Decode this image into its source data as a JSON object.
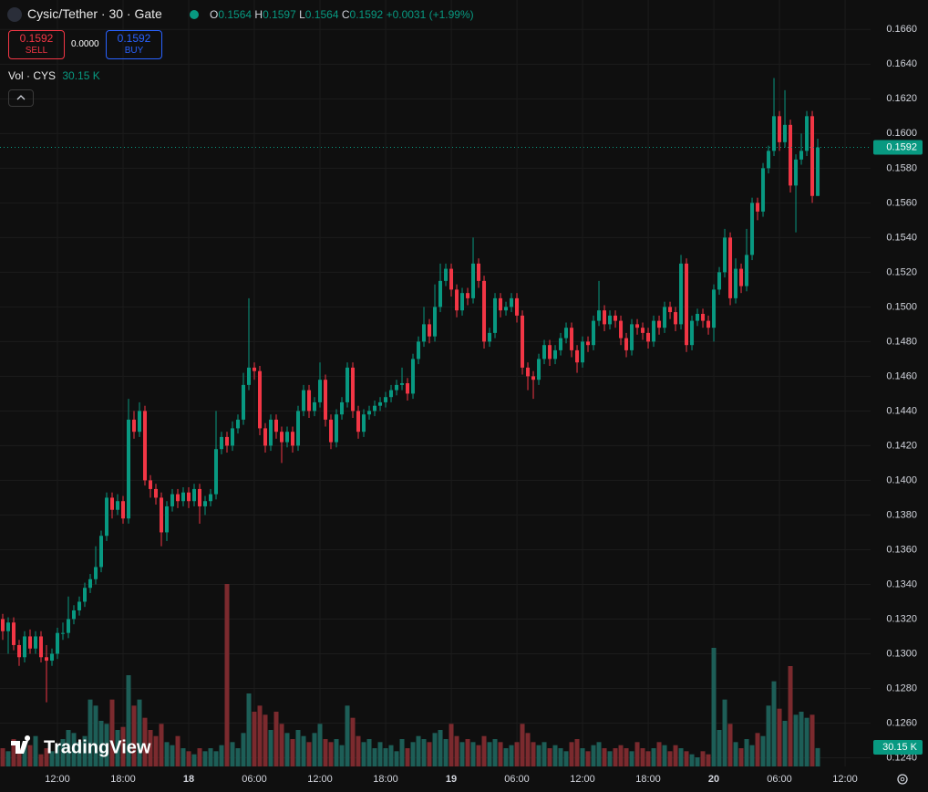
{
  "chart_data": {
    "type": "candlestick",
    "title": "Cysic/Tether · 30 · Gate",
    "legend": {
      "o": "O",
      "h": "H",
      "l": "L",
      "c": "C",
      "change": "+0.0031 (+1.99%)"
    },
    "trade": {
      "sell_label": "SELL",
      "buy_label": "BUY",
      "spread": "0.0000"
    },
    "volume_title": "Vol · CYS",
    "volume_label": "30.15 K",
    "watermark": "TradingView",
    "up_color": "#089981",
    "down_color": "#f23645",
    "volume_up_color": "#1d5e57",
    "volume_down_color": "#7b2a2e",
    "grid": true,
    "xlim": [
      6.75,
      86.33
    ],
    "ylim": [
      0.1235,
      0.1677
    ],
    "volume_ylim": [
      0,
      600000
    ],
    "xticks": [
      {
        "value": 12,
        "label": "12:00"
      },
      {
        "value": 18,
        "label": "18:00"
      },
      {
        "value": 24,
        "label": "18"
      },
      {
        "value": 30,
        "label": "06:00"
      },
      {
        "value": 36,
        "label": "12:00"
      },
      {
        "value": 42,
        "label": "18:00"
      },
      {
        "value": 48,
        "label": "19"
      },
      {
        "value": 54,
        "label": "06:00"
      },
      {
        "value": 60,
        "label": "12:00"
      },
      {
        "value": 66,
        "label": "18:00"
      },
      {
        "value": 72,
        "label": "20"
      },
      {
        "value": 78,
        "label": "06:00"
      },
      {
        "value": 84,
        "label": "12:00"
      }
    ],
    "yticks": [
      {
        "value": 0.124,
        "label": "0.1240"
      },
      {
        "value": 0.126,
        "label": "0.1260"
      },
      {
        "value": 0.128,
        "label": "0.1280"
      },
      {
        "value": 0.13,
        "label": "0.1300"
      },
      {
        "value": 0.132,
        "label": "0.1320"
      },
      {
        "value": 0.134,
        "label": "0.1340"
      },
      {
        "value": 0.136,
        "label": "0.1360"
      },
      {
        "value": 0.138,
        "label": "0.1380"
      },
      {
        "value": 0.14,
        "label": "0.1400"
      },
      {
        "value": 0.142,
        "label": "0.1420"
      },
      {
        "value": 0.144,
        "label": "0.1440"
      },
      {
        "value": 0.146,
        "label": "0.1460"
      },
      {
        "value": 0.148,
        "label": "0.1480"
      },
      {
        "value": 0.15,
        "label": "0.1500"
      },
      {
        "value": 0.152,
        "label": "0.1520"
      },
      {
        "value": 0.154,
        "label": "0.1540"
      },
      {
        "value": 0.156,
        "label": "0.1560"
      },
      {
        "value": 0.158,
        "label": "0.1580"
      },
      {
        "value": 0.16,
        "label": "0.1600"
      },
      {
        "value": 0.162,
        "label": "0.1620"
      },
      {
        "value": 0.164,
        "label": "0.1640"
      },
      {
        "value": 0.166,
        "label": "0.1660"
      }
    ],
    "x": [
      7,
      7.5,
      8,
      8.5,
      9,
      9.5,
      10,
      10.5,
      11,
      11.5,
      12,
      12.5,
      13,
      13.5,
      14,
      14.5,
      15,
      15.5,
      16,
      16.5,
      17,
      17.5,
      18,
      18.5,
      19,
      19.5,
      20,
      20.5,
      21,
      21.5,
      22,
      22.5,
      23,
      23.5,
      24,
      24.5,
      25,
      25.5,
      26,
      26.5,
      27,
      27.5,
      28,
      28.5,
      29,
      29.5,
      30,
      30.5,
      31,
      31.5,
      32,
      32.5,
      33,
      33.5,
      34,
      34.5,
      35,
      35.5,
      36,
      36.5,
      37,
      37.5,
      38,
      38.5,
      39,
      39.5,
      40,
      40.5,
      41,
      41.5,
      42,
      42.5,
      43,
      43.5,
      44,
      44.5,
      45,
      45.5,
      46,
      46.5,
      47,
      47.5,
      48,
      48.5,
      49,
      49.5,
      50,
      50.5,
      51,
      51.5,
      52,
      52.5,
      53,
      53.5,
      54,
      54.5,
      55,
      55.5,
      56,
      56.5,
      57,
      57.5,
      58,
      58.5,
      59,
      59.5,
      60,
      60.5,
      61,
      61.5,
      62,
      62.5,
      63,
      63.5,
      64,
      64.5,
      65,
      65.5,
      66,
      66.5,
      67,
      67.5,
      68,
      68.5,
      69,
      69.5,
      70,
      70.5,
      71,
      71.5,
      72,
      72.5,
      73,
      73.5,
      74,
      74.5,
      75,
      75.5,
      76,
      76.5,
      77,
      77.5,
      78,
      78.5,
      79,
      79.5,
      80,
      80.5,
      81,
      81.5
    ],
    "open": [
      0.132,
      0.1313,
      0.1318,
      0.1305,
      0.1298,
      0.131,
      0.1303,
      0.131,
      0.1298,
      0.1296,
      0.13,
      0.1312,
      0.1312,
      0.132,
      0.1325,
      0.133,
      0.1338,
      0.1343,
      0.135,
      0.1368,
      0.139,
      0.1383,
      0.1388,
      0.1378,
      0.1435,
      0.1428,
      0.144,
      0.14,
      0.1395,
      0.139,
      0.137,
      0.1385,
      0.1392,
      0.1388,
      0.1393,
      0.1388,
      0.1395,
      0.1385,
      0.1388,
      0.1392,
      0.1418,
      0.1425,
      0.142,
      0.143,
      0.1435,
      0.1455,
      0.1465,
      0.1463,
      0.143,
      0.142,
      0.1435,
      0.1428,
      0.1422,
      0.1428,
      0.142,
      0.144,
      0.1452,
      0.144,
      0.1445,
      0.1458,
      0.1435,
      0.1422,
      0.1438,
      0.1445,
      0.1465,
      0.144,
      0.1428,
      0.1438,
      0.144,
      0.1443,
      0.1445,
      0.1448,
      0.1452,
      0.1455,
      0.1456,
      0.145,
      0.147,
      0.148,
      0.149,
      0.1483,
      0.15,
      0.1515,
      0.1522,
      0.151,
      0.1498,
      0.1508,
      0.1505,
      0.1525,
      0.1515,
      0.148,
      0.1485,
      0.1505,
      0.1498,
      0.15,
      0.1505,
      0.1495,
      0.1465,
      0.146,
      0.1458,
      0.147,
      0.1478,
      0.147,
      0.1475,
      0.1482,
      0.1488,
      0.1475,
      0.1468,
      0.148,
      0.1478,
      0.1492,
      0.1498,
      0.149,
      0.1495,
      0.1492,
      0.1482,
      0.1475,
      0.149,
      0.1488,
      0.1485,
      0.148,
      0.1492,
      0.1488,
      0.15,
      0.1497,
      0.149,
      0.1525,
      0.1478,
      0.1492,
      0.1496,
      0.1492,
      0.1488,
      0.151,
      0.152,
      0.154,
      0.1505,
      0.1522,
      0.1512,
      0.153,
      0.156,
      0.1555,
      0.158,
      0.159,
      0.161,
      0.1595,
      0.1605,
      0.157,
      0.1585,
      0.159,
      0.161,
      0.1564
    ],
    "high": [
      0.1323,
      0.1321,
      0.1321,
      0.1308,
      0.1313,
      0.1314,
      0.1313,
      0.1313,
      0.1305,
      0.1303,
      0.1315,
      0.1318,
      0.1333,
      0.1328,
      0.1333,
      0.1341,
      0.1346,
      0.1362,
      0.1371,
      0.1393,
      0.1393,
      0.1392,
      0.1391,
      0.1447,
      0.144,
      0.1445,
      0.1443,
      0.1403,
      0.1398,
      0.1393,
      0.1388,
      0.1395,
      0.1395,
      0.1396,
      0.1396,
      0.1398,
      0.1398,
      0.1391,
      0.1395,
      0.144,
      0.1428,
      0.1428,
      0.1434,
      0.1438,
      0.1462,
      0.1505,
      0.1468,
      0.1466,
      0.1433,
      0.1438,
      0.1438,
      0.1431,
      0.1431,
      0.1431,
      0.1443,
      0.1455,
      0.1455,
      0.1448,
      0.1468,
      0.1461,
      0.1438,
      0.1441,
      0.1448,
      0.1468,
      0.1468,
      0.1443,
      0.1441,
      0.1443,
      0.1446,
      0.1448,
      0.1451,
      0.1455,
      0.1458,
      0.1465,
      0.1459,
      0.1473,
      0.1483,
      0.15,
      0.1493,
      0.1513,
      0.1525,
      0.1525,
      0.1525,
      0.1513,
      0.1511,
      0.1511,
      0.154,
      0.1528,
      0.1518,
      0.1488,
      0.1508,
      0.1508,
      0.1503,
      0.1508,
      0.1508,
      0.1498,
      0.1468,
      0.1463,
      0.1473,
      0.1481,
      0.1481,
      0.1478,
      0.1485,
      0.1491,
      0.1491,
      0.1478,
      0.1483,
      0.1483,
      0.1495,
      0.1515,
      0.1501,
      0.1498,
      0.1498,
      0.1495,
      0.1485,
      0.1493,
      0.1493,
      0.1491,
      0.1488,
      0.1495,
      0.1495,
      0.1503,
      0.1503,
      0.15,
      0.153,
      0.1528,
      0.1495,
      0.1499,
      0.1499,
      0.1495,
      0.1513,
      0.1523,
      0.1545,
      0.1543,
      0.1528,
      0.1525,
      0.1545,
      0.1563,
      0.1563,
      0.1583,
      0.1593,
      0.1632,
      0.1613,
      0.1625,
      0.1608,
      0.1588,
      0.16,
      0.1613,
      0.1613,
      0.1597
    ],
    "low": [
      0.1308,
      0.13,
      0.1302,
      0.1293,
      0.1295,
      0.13,
      0.13,
      0.1295,
      0.1272,
      0.1293,
      0.1297,
      0.1308,
      0.1309,
      0.1317,
      0.1322,
      0.1327,
      0.1335,
      0.134,
      0.1347,
      0.1365,
      0.1378,
      0.138,
      0.1375,
      0.1375,
      0.1424,
      0.1425,
      0.1397,
      0.139,
      0.1386,
      0.1362,
      0.1365,
      0.1382,
      0.1384,
      0.1385,
      0.1384,
      0.1385,
      0.1375,
      0.138,
      0.1385,
      0.1389,
      0.1415,
      0.1416,
      0.1417,
      0.1427,
      0.1432,
      0.1452,
      0.1458,
      0.1426,
      0.1416,
      0.1417,
      0.1424,
      0.141,
      0.1419,
      0.1416,
      0.1417,
      0.1437,
      0.1436,
      0.1437,
      0.1442,
      0.1431,
      0.1418,
      0.1419,
      0.1435,
      0.1442,
      0.1436,
      0.1424,
      0.1425,
      0.1435,
      0.1437,
      0.144,
      0.1442,
      0.1445,
      0.1449,
      0.1452,
      0.1446,
      0.1447,
      0.1467,
      0.1477,
      0.1479,
      0.148,
      0.1497,
      0.1512,
      0.1506,
      0.1494,
      0.1495,
      0.1501,
      0.1502,
      0.1511,
      0.1476,
      0.1477,
      0.1482,
      0.1494,
      0.1495,
      0.1497,
      0.1491,
      0.1461,
      0.1452,
      0.1447,
      0.1455,
      0.1467,
      0.1466,
      0.1467,
      0.1472,
      0.1479,
      0.1471,
      0.1462,
      0.1465,
      0.1474,
      0.1475,
      0.1489,
      0.1486,
      0.1487,
      0.1488,
      0.1478,
      0.1471,
      0.1472,
      0.1484,
      0.1481,
      0.1476,
      0.1477,
      0.1484,
      0.1485,
      0.1493,
      0.1486,
      0.1487,
      0.1474,
      0.1475,
      0.1489,
      0.1488,
      0.1484,
      0.148,
      0.1507,
      0.1517,
      0.1501,
      0.1502,
      0.1508,
      0.1509,
      0.1527,
      0.155,
      0.1552,
      0.1577,
      0.1587,
      0.159,
      0.1592,
      0.1566,
      0.1543,
      0.1582,
      0.1587,
      0.156,
      0.1564
    ],
    "close": [
      0.1313,
      0.1318,
      0.1305,
      0.1298,
      0.131,
      0.1303,
      0.131,
      0.1298,
      0.1296,
      0.13,
      0.1312,
      0.1312,
      0.132,
      0.1325,
      0.133,
      0.1338,
      0.1343,
      0.135,
      0.1368,
      0.139,
      0.1383,
      0.1388,
      0.1378,
      0.1435,
      0.1428,
      0.144,
      0.14,
      0.1395,
      0.139,
      0.137,
      0.1385,
      0.1392,
      0.1388,
      0.1393,
      0.1388,
      0.1395,
      0.1385,
      0.1388,
      0.1392,
      0.1418,
      0.1425,
      0.142,
      0.143,
      0.1435,
      0.1455,
      0.1465,
      0.1463,
      0.143,
      0.142,
      0.1435,
      0.1428,
      0.1422,
      0.1428,
      0.142,
      0.144,
      0.1452,
      0.144,
      0.1445,
      0.1458,
      0.1435,
      0.1422,
      0.1438,
      0.1445,
      0.1465,
      0.144,
      0.1428,
      0.1438,
      0.144,
      0.1443,
      0.1445,
      0.1448,
      0.1452,
      0.1455,
      0.1456,
      0.145,
      0.147,
      0.148,
      0.149,
      0.1483,
      0.15,
      0.1515,
      0.1522,
      0.151,
      0.1498,
      0.1508,
      0.1505,
      0.1525,
      0.1515,
      0.148,
      0.1485,
      0.1505,
      0.1498,
      0.15,
      0.1505,
      0.1495,
      0.1465,
      0.146,
      0.1458,
      0.147,
      0.1478,
      0.147,
      0.1475,
      0.1482,
      0.1488,
      0.1475,
      0.1468,
      0.148,
      0.1478,
      0.1492,
      0.1498,
      0.149,
      0.1495,
      0.1492,
      0.1482,
      0.1475,
      0.149,
      0.1488,
      0.1485,
      0.148,
      0.1492,
      0.1488,
      0.15,
      0.1497,
      0.149,
      0.1525,
      0.1478,
      0.1492,
      0.1496,
      0.1492,
      0.1488,
      0.151,
      0.152,
      0.154,
      0.1505,
      0.1522,
      0.1512,
      0.153,
      0.156,
      0.1555,
      0.158,
      0.159,
      0.161,
      0.1595,
      0.1605,
      0.157,
      0.1585,
      0.159,
      0.161,
      0.1564,
      0.1592
    ],
    "volume": [
      30000,
      25000,
      45000,
      30000,
      40000,
      35000,
      50000,
      20000,
      30000,
      25000,
      35000,
      45000,
      60000,
      55000,
      40000,
      50000,
      110000,
      100000,
      75000,
      70000,
      110000,
      60000,
      65000,
      150000,
      100000,
      110000,
      80000,
      60000,
      50000,
      70000,
      40000,
      35000,
      50000,
      30000,
      25000,
      20000,
      30000,
      25000,
      30000,
      25000,
      35000,
      300000,
      40000,
      30000,
      55000,
      120000,
      90000,
      100000,
      85000,
      60000,
      90000,
      70000,
      55000,
      45000,
      60000,
      50000,
      40000,
      55000,
      70000,
      45000,
      40000,
      45000,
      35000,
      100000,
      80000,
      50000,
      40000,
      45000,
      30000,
      40000,
      30000,
      35000,
      25000,
      45000,
      30000,
      40000,
      50000,
      45000,
      40000,
      55000,
      60000,
      45000,
      70000,
      50000,
      40000,
      45000,
      40000,
      35000,
      50000,
      40000,
      45000,
      40000,
      30000,
      35000,
      40000,
      70000,
      55000,
      40000,
      35000,
      40000,
      30000,
      35000,
      30000,
      25000,
      40000,
      45000,
      30000,
      25000,
      35000,
      40000,
      30000,
      25000,
      30000,
      35000,
      30000,
      25000,
      40000,
      30000,
      25000,
      30000,
      40000,
      35000,
      25000,
      35000,
      30000,
      25000,
      20000,
      15000,
      25000,
      20000,
      195000,
      60000,
      110000,
      70000,
      40000,
      30000,
      45000,
      35000,
      55000,
      50000,
      100000,
      140000,
      95000,
      75000,
      165000,
      85000,
      90000,
      80000,
      85000,
      30150
    ]
  }
}
